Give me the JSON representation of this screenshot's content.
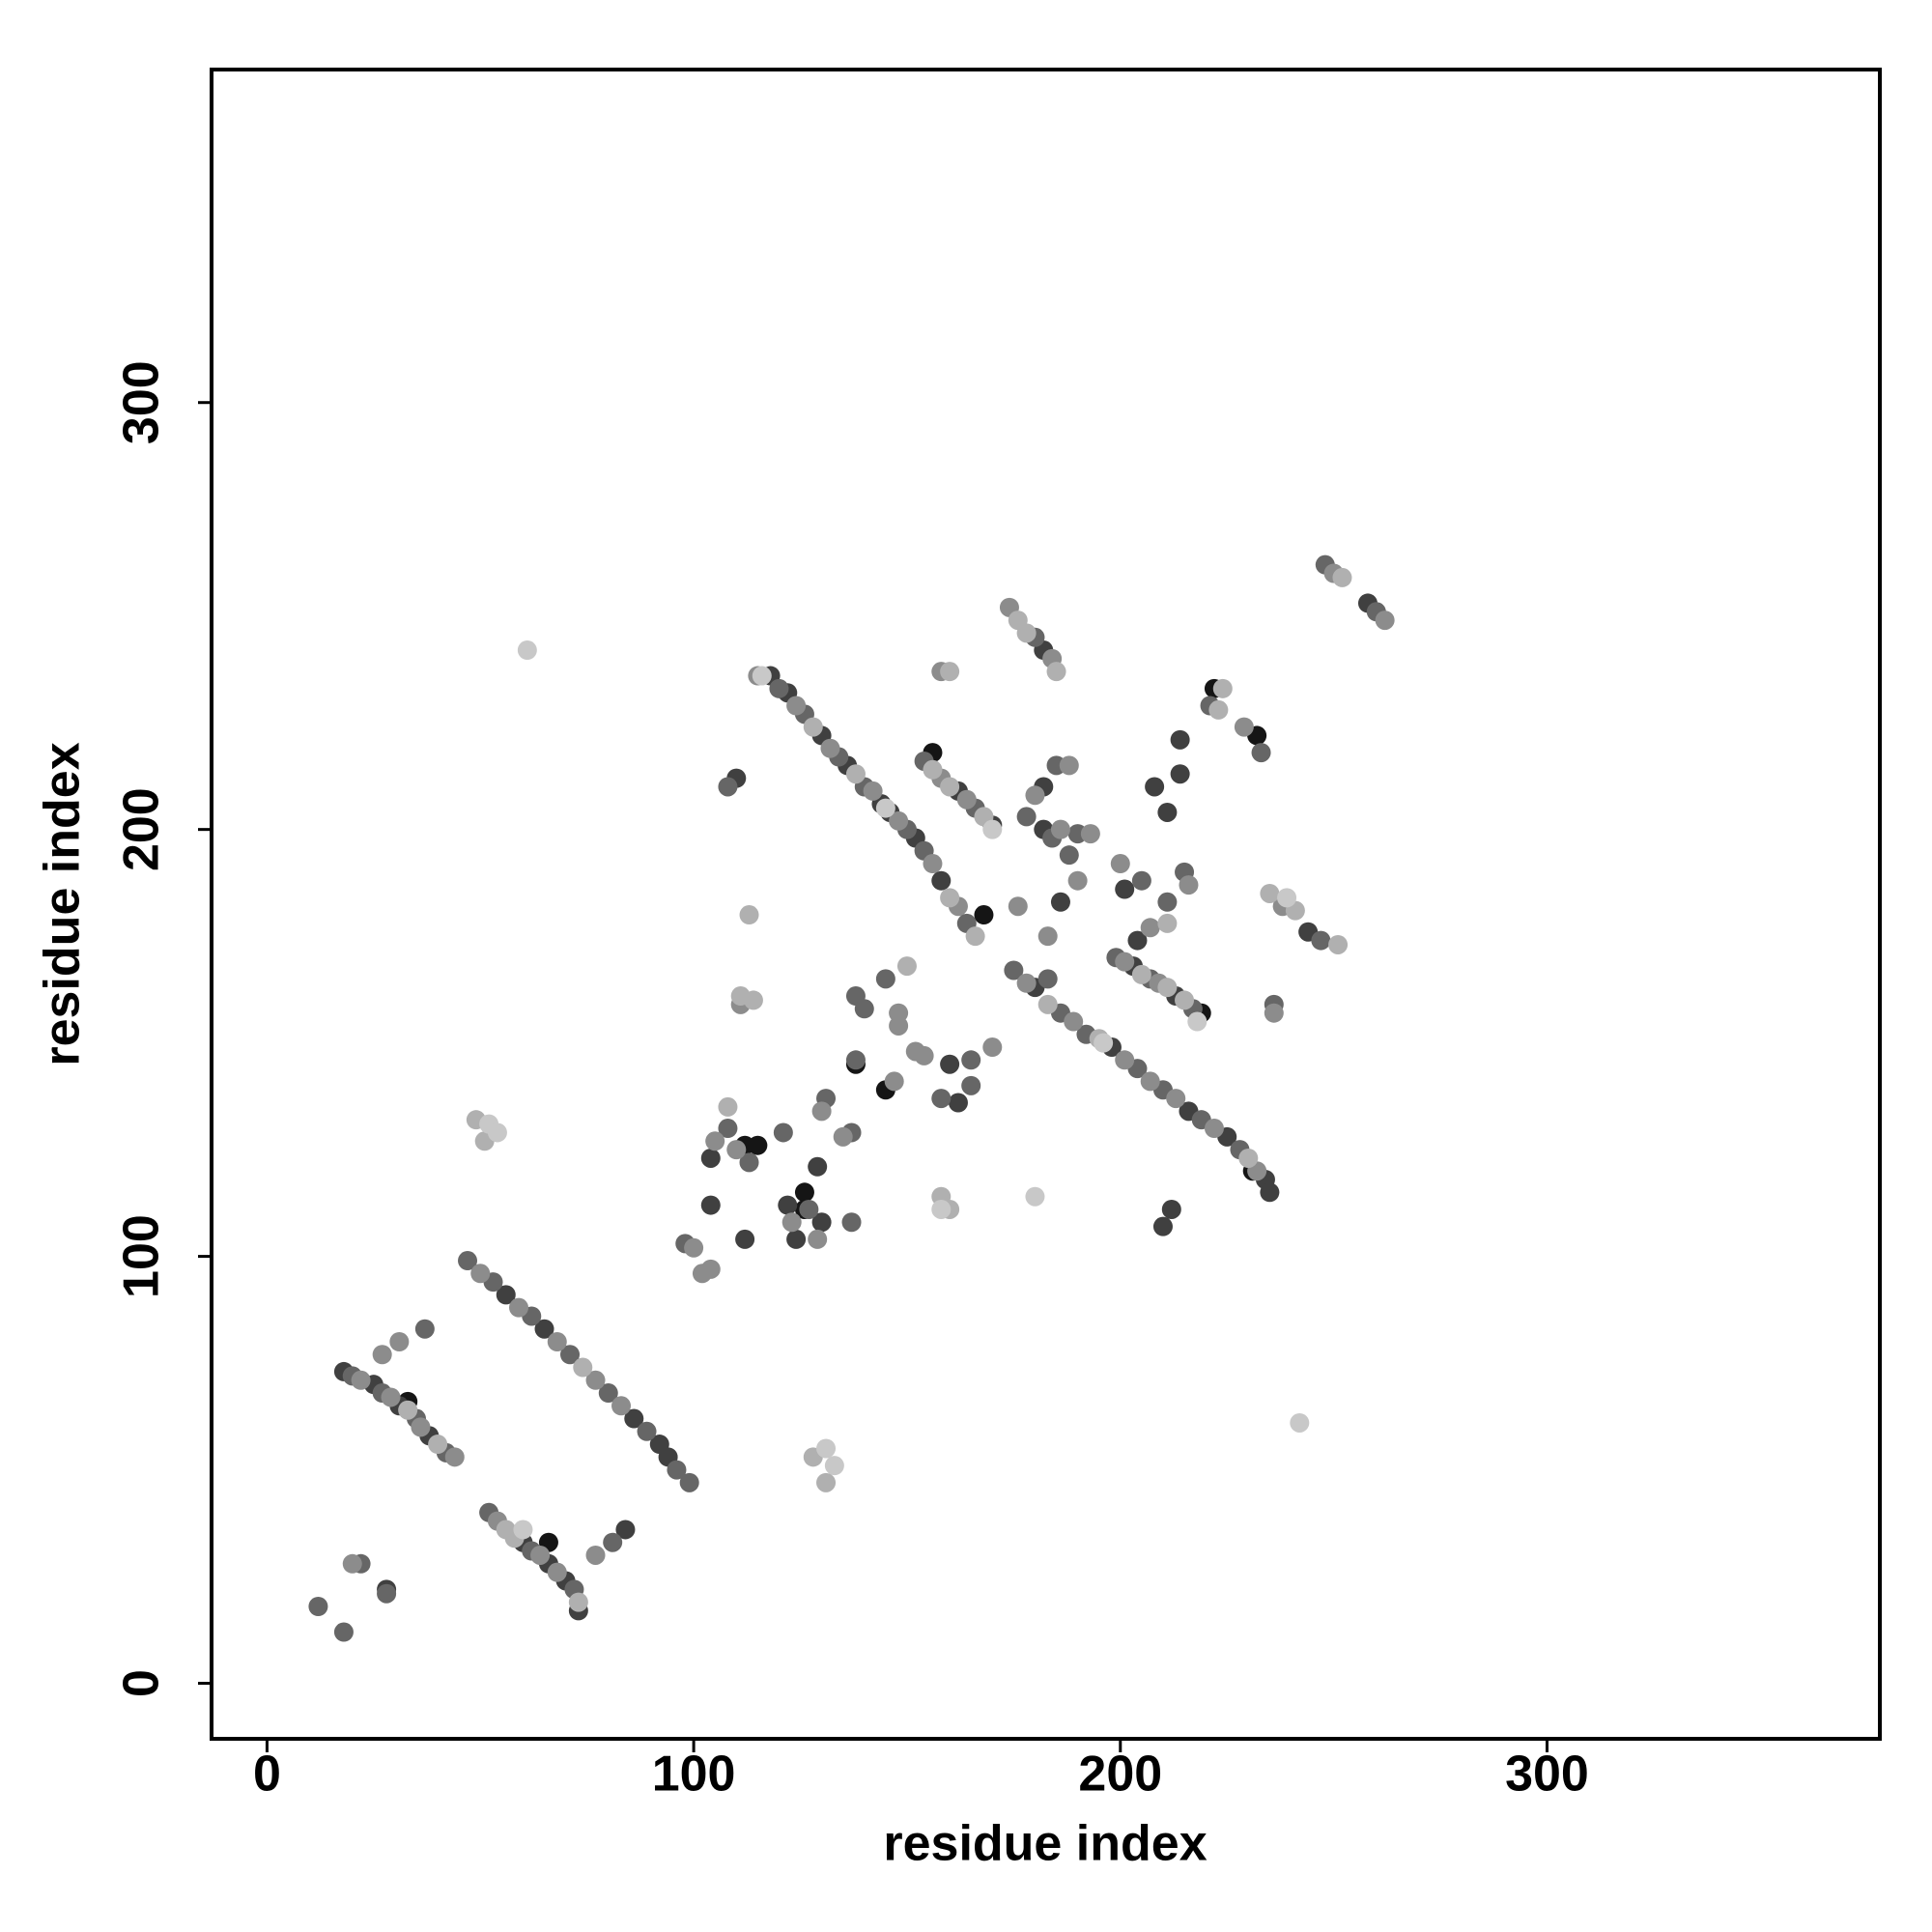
{
  "chart_data": {
    "type": "scatter",
    "xlabel": "residue index",
    "ylabel": "residue index",
    "xlim": [
      -13,
      378
    ],
    "ylim": [
      -13,
      378
    ],
    "xticks": [
      0,
      100,
      200,
      300
    ],
    "yticks": [
      0,
      100,
      200,
      300
    ],
    "grid": false,
    "series": [
      {
        "color": "#151515",
        "x": [
          33,
          66,
          138,
          145,
          156,
          219,
          232,
          222,
          231,
          126,
          126,
          112,
          115,
          168
        ],
        "values": [
          66,
          33,
          145,
          139,
          218,
          157,
          222,
          233,
          120,
          115,
          111,
          126,
          126,
          180
        ]
      },
      {
        "color": "#404040",
        "x": [
          18,
          25,
          31,
          38,
          60,
          66,
          70,
          73,
          84,
          56,
          65,
          86,
          92,
          94,
          28,
          104,
          104,
          122,
          124,
          129,
          130,
          118,
          122,
          130,
          136,
          144,
          152,
          158,
          180,
          198,
          216,
          225,
          234,
          235,
          162,
          170,
          203,
          213,
          258,
          182,
          214,
          214,
          208,
          211,
          201,
          204,
          244,
          182,
          186,
          182,
          112,
          110,
          146,
          160,
          162,
          210,
          212
        ],
        "values": [
          73,
          70,
          65,
          58,
          33,
          28,
          24,
          17,
          36,
          91,
          83,
          62,
          56,
          53,
          22,
          123,
          112,
          112,
          104,
          121,
          108,
          236,
          232,
          222,
          215,
          206,
          198,
          188,
          163,
          149,
          134,
          128,
          118,
          115,
          209,
          201,
          168,
          161,
          253,
          242,
          221,
          213,
          210,
          204,
          186,
          174,
          176,
          200,
          183,
          210,
          104,
          212,
          204,
          145,
          136,
          107,
          111
        ]
      },
      {
        "color": "#666666",
        "x": [
          20,
          27,
          35,
          42,
          37,
          52,
          62,
          72,
          81,
          47,
          53,
          62,
          71,
          80,
          89,
          96,
          99,
          22,
          28,
          12,
          18,
          98,
          108,
          113,
          121,
          127,
          131,
          137,
          137,
          120,
          126,
          134,
          140,
          150,
          154,
          164,
          175,
          186,
          192,
          204,
          210,
          219,
          228,
          154,
          166,
          199,
          207,
          217,
          248,
          260,
          180,
          221,
          233,
          211,
          215,
          205,
          247,
          236,
          184,
          190,
          188,
          185,
          178,
          183,
          108,
          138,
          140,
          145,
          138,
          158,
          165,
          165
        ],
        "values": [
          72,
          68,
          62,
          54,
          83,
          40,
          31,
          22,
          33,
          99,
          94,
          86,
          77,
          68,
          59,
          50,
          47,
          28,
          21,
          18,
          12,
          103,
          130,
          122,
          129,
          111,
          137,
          129,
          108,
          233,
          227,
          217,
          210,
          200,
          195,
          178,
          167,
          157,
          152,
          144,
          139,
          132,
          125,
          216,
          205,
          170,
          165,
          158,
          262,
          251,
          245,
          229,
          218,
          183,
          190,
          188,
          174,
          159,
          198,
          199,
          194,
          215,
          203,
          165,
          210,
          161,
          158,
          165,
          146,
          137,
          140,
          146
        ]
      },
      {
        "color": "#8c8c8c",
        "x": [
          22,
          29,
          36,
          44,
          27,
          31,
          54,
          64,
          68,
          77,
          50,
          59,
          68,
          77,
          83,
          20,
          100,
          102,
          104,
          105,
          110,
          123,
          129,
          130,
          135,
          115,
          124,
          132,
          142,
          148,
          156,
          162,
          178,
          189,
          201,
          207,
          213,
          222,
          232,
          158,
          164,
          201,
          209,
          250,
          262,
          174,
          184,
          158,
          229,
          216,
          200,
          207,
          238,
          236,
          186,
          193,
          190,
          188,
          180,
          176,
          183,
          111,
          148,
          148,
          147,
          152,
          154,
          170
        ],
        "values": [
          71,
          67,
          60,
          53,
          77,
          80,
          38,
          30,
          26,
          30,
          96,
          88,
          80,
          71,
          65,
          28,
          102,
          96,
          97,
          127,
          125,
          108,
          104,
          134,
          128,
          236,
          229,
          219,
          209,
          202,
          192,
          182,
          164,
          155,
          146,
          141,
          137,
          130,
          120,
          212,
          207,
          169,
          164,
          260,
          249,
          252,
          240,
          237,
          224,
          187,
          192,
          177,
          182,
          157,
          200,
          199,
          188,
          215,
          208,
          182,
          175,
          159,
          157,
          154,
          141,
          148,
          147,
          149
        ]
      },
      {
        "color": "#b0b0b0",
        "x": [
          40,
          33,
          56,
          58,
          73,
          74,
          49,
          51,
          128,
          131,
          128,
          138,
          160,
          166,
          183,
          195,
          230,
          156,
          160,
          168,
          205,
          211,
          215,
          252,
          176,
          178,
          185,
          160,
          224,
          223,
          211,
          235,
          241,
          251,
          108,
          158,
          160,
          111,
          114,
          150,
          113
        ],
        "values": [
          56,
          64,
          36,
          34,
          19,
          74,
          132,
          127,
          53,
          47,
          224,
          213,
          184,
          175,
          159,
          151,
          123,
          214,
          210,
          203,
          166,
          163,
          160,
          259,
          249,
          246,
          237,
          237,
          233,
          228,
          178,
          185,
          181,
          173,
          135,
          114,
          111,
          161,
          160,
          168,
          180
        ]
      },
      {
        "color": "#c8c8c8",
        "x": [
          52,
          54,
          131,
          133,
          61,
          242,
          180,
          158,
          116,
          145,
          170,
          196,
          218,
          239,
          60
        ],
        "values": [
          131,
          129,
          55,
          51,
          242,
          61,
          114,
          111,
          236,
          205,
          200,
          150,
          155,
          184,
          36
        ]
      }
    ]
  }
}
